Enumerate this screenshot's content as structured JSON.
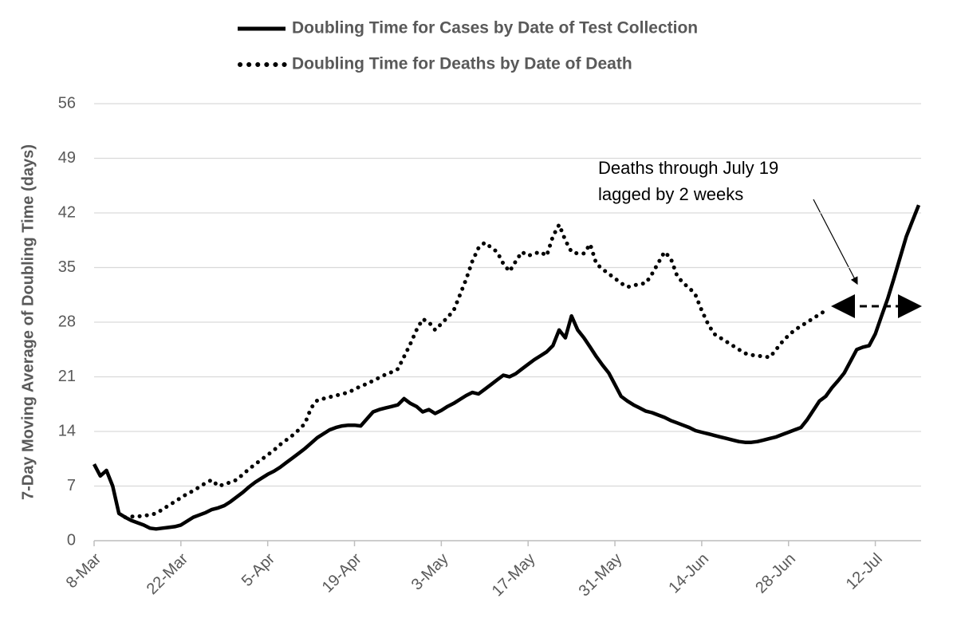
{
  "chart_data": {
    "type": "line",
    "y_label": "7-Day Moving Average of Doubling Time (days)",
    "annotation": [
      "Deaths through July 19",
      "lagged by 2 weeks"
    ],
    "categories": [
      "8-Mar",
      null,
      null,
      null,
      null,
      null,
      null,
      null,
      null,
      null,
      null,
      null,
      null,
      null,
      "22-Mar",
      null,
      null,
      null,
      null,
      null,
      null,
      null,
      null,
      null,
      null,
      null,
      null,
      null,
      "5-Apr",
      null,
      null,
      null,
      null,
      null,
      null,
      null,
      null,
      null,
      null,
      null,
      null,
      null,
      "19-Apr",
      null,
      null,
      null,
      null,
      null,
      null,
      null,
      null,
      null,
      null,
      null,
      null,
      null,
      "3-May",
      null,
      null,
      null,
      null,
      null,
      null,
      null,
      null,
      null,
      null,
      null,
      null,
      null,
      "17-May",
      null,
      null,
      null,
      null,
      null,
      null,
      null,
      null,
      null,
      null,
      null,
      null,
      null,
      "31-May",
      null,
      null,
      null,
      null,
      null,
      null,
      null,
      null,
      null,
      null,
      null,
      null,
      null,
      "14-Jun",
      null,
      null,
      null,
      null,
      null,
      null,
      null,
      null,
      null,
      null,
      null,
      null,
      null,
      "28-Jun",
      null,
      null,
      null,
      null,
      null,
      null,
      null,
      null,
      null,
      null,
      null,
      null,
      null,
      "12-Jul",
      null,
      null,
      null,
      null,
      null,
      null,
      null
    ],
    "series": [
      {
        "name": "Doubling Time for Cases by Date of Test Collection",
        "color": "#000000",
        "style": "solid",
        "values": [
          9.8,
          8.3,
          9,
          7,
          3.5,
          3,
          2.6,
          2.3,
          2,
          1.6,
          1.5,
          1.6,
          1.7,
          1.8,
          2,
          2.5,
          3,
          3.3,
          3.6,
          4,
          4.2,
          4.5,
          5,
          5.6,
          6.2,
          6.9,
          7.5,
          8,
          8.5,
          8.9,
          9.4,
          10,
          10.6,
          11.2,
          11.8,
          12.5,
          13.2,
          13.7,
          14.2,
          14.5,
          14.7,
          14.8,
          14.8,
          14.7,
          15.6,
          16.5,
          16.8,
          17,
          17.2,
          17.4,
          18.2,
          17.6,
          17.2,
          16.5,
          16.8,
          16.3,
          16.7,
          17.2,
          17.6,
          18.1,
          18.6,
          19,
          18.8,
          19.4,
          20,
          20.6,
          21.2,
          21,
          21.4,
          22,
          22.6,
          23.2,
          23.7,
          24.2,
          25,
          27,
          26,
          28.8,
          27,
          26,
          24.8,
          23.6,
          22.5,
          21.5,
          20,
          18.5,
          17.9,
          17.4,
          17,
          16.6,
          16.4,
          16.1,
          15.8,
          15.4,
          15.1,
          14.8,
          14.5,
          14.1,
          13.9,
          13.7,
          13.5,
          13.3,
          13.1,
          12.9,
          12.7,
          12.6,
          12.6,
          12.7,
          12.9,
          13.1,
          13.3,
          13.6,
          13.9,
          14.2,
          14.5,
          15.5,
          16.7,
          17.9,
          18.5,
          19.6,
          20.5,
          21.5,
          23,
          24.5,
          24.8,
          25,
          26.5,
          28.8,
          31,
          33.6,
          36.3,
          39,
          41,
          43
        ]
      },
      {
        "name": "Doubling Time for Deaths by Date of Death",
        "color": "#000000",
        "style": "dotted",
        "values": [
          null,
          null,
          null,
          null,
          null,
          3,
          3.1,
          3.1,
          3.2,
          3.3,
          3.5,
          4,
          4.5,
          5,
          5.5,
          6,
          6.4,
          6.9,
          7.4,
          7.8,
          7,
          7.2,
          7.5,
          7.8,
          8.5,
          9.2,
          9.8,
          10.4,
          11,
          11.6,
          12.3,
          12.9,
          13.5,
          14.2,
          15,
          17,
          18,
          18.2,
          18.4,
          18.6,
          18.8,
          19,
          19.4,
          19.8,
          20.1,
          20.5,
          20.9,
          21.3,
          21.6,
          22,
          23.6,
          25.2,
          27,
          28.4,
          28,
          27,
          27.8,
          28.6,
          29.5,
          31.5,
          33.5,
          35.8,
          37.5,
          38.2,
          37.6,
          37,
          35.5,
          34.5,
          35.8,
          37,
          36.5,
          36.8,
          37,
          36.5,
          39,
          40.5,
          38.5,
          37,
          36.8,
          36.8,
          38,
          35.5,
          34.8,
          34.2,
          33.6,
          33,
          32.5,
          32.7,
          32.9,
          33,
          34.2,
          35.6,
          37,
          36.2,
          34,
          33,
          32.4,
          31.5,
          29.5,
          27.8,
          26.5,
          26,
          25.5,
          25,
          24.5,
          24,
          23.8,
          23.7,
          23.6,
          23.5,
          24.5,
          25.5,
          26.3,
          27,
          27.5,
          28,
          28.5,
          29,
          29.5,
          null,
          null,
          null,
          null,
          null,
          null,
          null,
          null,
          null,
          null,
          null,
          null,
          null,
          null,
          null
        ]
      }
    ],
    "ylim": [
      0,
      56
    ],
    "yticks": [
      0,
      7,
      14,
      21,
      28,
      35,
      42,
      49,
      56
    ],
    "grid": true,
    "legend": "top"
  }
}
